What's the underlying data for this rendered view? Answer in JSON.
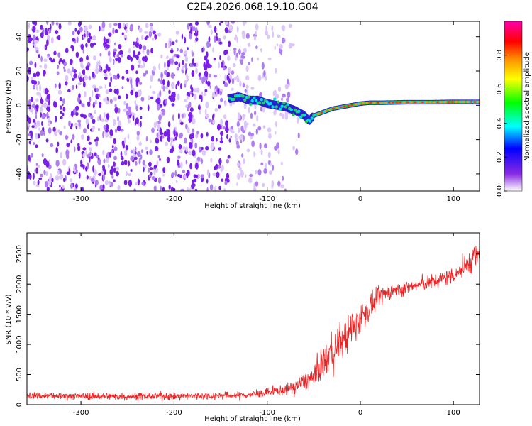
{
  "page_title": "C2E4.2026.068.19.10.G04",
  "chart_data": [
    {
      "type": "heatmap",
      "xlabel": "Height of straight line (km)",
      "ylabel": "Frequency (Hz)",
      "xlim": [
        -358,
        128
      ],
      "ylim": [
        -50,
        49
      ],
      "xticks": [
        -300,
        -200,
        -100,
        0,
        100
      ],
      "yticks": [
        -40,
        -20,
        0,
        20,
        40
      ],
      "noise_region": {
        "x_from": -358,
        "x_to": -140,
        "fades_out_by": -60
      },
      "frequency_trace": {
        "x": [
          -140,
          -130,
          -120,
          -110,
          -100,
          -90,
          -80,
          -70,
          -60,
          -55,
          -50,
          -45,
          -40,
          -30,
          -20,
          -10,
          0,
          10,
          25,
          50,
          75,
          100,
          128
        ],
        "y": [
          4,
          5,
          3,
          3,
          1,
          0,
          -1,
          -3,
          -6,
          -9,
          -6,
          -5,
          -4,
          -2,
          -1,
          0,
          1,
          1.5,
          1.5,
          1.8,
          1.8,
          2,
          2
        ]
      },
      "colorbar": {
        "label": "Normalized spectral amplitude",
        "range": [
          0,
          1
        ],
        "ticks": [
          "0.0",
          "0.2",
          "0.4",
          "0.6",
          "0.8"
        ],
        "colors": [
          "#ffffff",
          "#8a2be2",
          "#0000ff",
          "#00ffff",
          "#00ff00",
          "#ffff00",
          "#ff8c00",
          "#ff0000",
          "#ff00aa"
        ]
      }
    },
    {
      "type": "line",
      "xlabel": "Height of straight line (km)",
      "ylabel": "SNR (10 * v/v)",
      "xlim": [
        -358,
        128
      ],
      "ylim": [
        0,
        2850
      ],
      "xticks": [
        -300,
        -200,
        -100,
        0,
        100
      ],
      "yticks": [
        0,
        500,
        1000,
        1500,
        2000,
        2500
      ],
      "series": [
        {
          "name": "SNR",
          "color": "#ee2222",
          "x": [
            -358,
            -300,
            -250,
            -200,
            -150,
            -120,
            -100,
            -90,
            -80,
            -70,
            -60,
            -50,
            -40,
            -30,
            -20,
            -10,
            0,
            10,
            20,
            30,
            40,
            60,
            80,
            100,
            110,
            120,
            128
          ],
          "y": [
            150,
            140,
            140,
            140,
            150,
            160,
            200,
            230,
            250,
            300,
            380,
            450,
            700,
            900,
            1050,
            1200,
            1450,
            1600,
            1780,
            1880,
            1900,
            1980,
            2050,
            2150,
            2250,
            2420,
            2500
          ],
          "noise_amplitude": [
            60,
            60,
            60,
            60,
            60,
            60,
            70,
            80,
            90,
            110,
            150,
            200,
            260,
            300,
            320,
            300,
            260,
            200,
            160,
            140,
            120,
            110,
            120,
            150,
            170,
            220,
            250
          ]
        }
      ]
    }
  ]
}
